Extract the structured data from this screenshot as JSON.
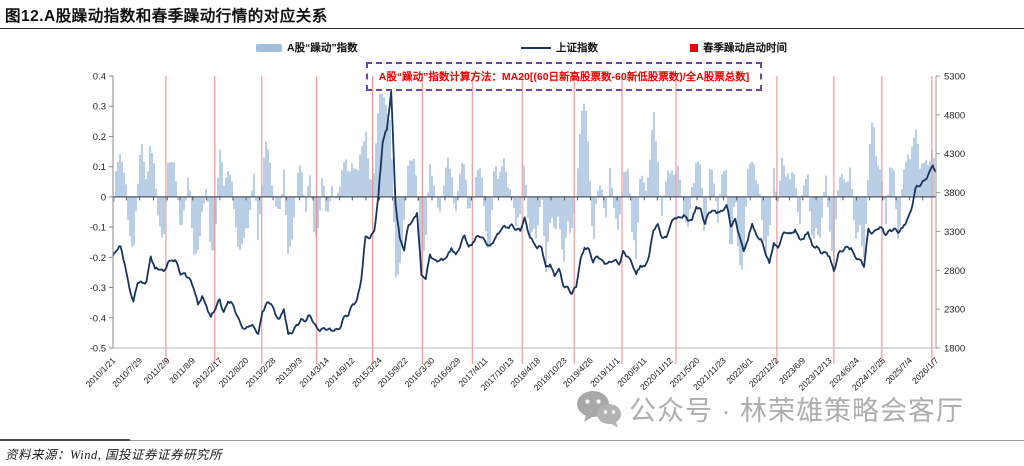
{
  "header": {
    "title": "图12.A股躁动指数和春季躁动行情的对应关系"
  },
  "legend": [
    {
      "label": "A股“躁动”指数",
      "type": "bar",
      "color": "#a3bedd"
    },
    {
      "label": "上证指数",
      "type": "line",
      "color": "#17355e"
    },
    {
      "label": "春季躁动启动时间",
      "type": "square",
      "color": "#e40000"
    }
  ],
  "annotation": {
    "text": "A股“躁动”指数计算方法：MA20[(60日新高股票数-60新低股票数)/全A股票总数]",
    "text_color": "#ee0000",
    "border_color": "#6a48a8"
  },
  "watermark": {
    "text": "公众号 · 林荣雄策略会客厅"
  },
  "footer": {
    "source": "资料来源：Wind, 国投证券证券研究所"
  },
  "chart_data": {
    "type": "bar+line",
    "title": "图12.A股躁动指数和春季躁动行情的对应关系",
    "x_range": [
      "2010/1/21",
      "2026/1/7"
    ],
    "left_axis": {
      "range": [
        -0.5,
        0.4
      ],
      "ticks": [
        "0.4",
        "0.3",
        "0.2",
        "0.1",
        "0",
        "-0.1",
        "-0.2",
        "-0.3",
        "-0.4",
        "-0.5"
      ]
    },
    "right_axis": {
      "range": [
        1800,
        5300
      ],
      "ticks": [
        "5300",
        "4800",
        "4300",
        "3800",
        "3300",
        "2800",
        "2300",
        "1800"
      ]
    },
    "x_tick_labels": [
      "2010/1/21",
      "2010/7/29",
      "2011/2/9",
      "2011/8/9",
      "2012/2/17",
      "2012/8/20",
      "2013/2/28",
      "2013/9/3",
      "2014/3/14",
      "2014/9/12",
      "2015/3/24",
      "2015/9/22",
      "2016/3/30",
      "2016/9/29",
      "2017/4/11",
      "2017/10/13",
      "2018/4/18",
      "2018/10/23",
      "2019/4/26",
      "2019/11/1",
      "2020/5/11",
      "2020/11/12",
      "2021/5/20",
      "2021/11/23",
      "2022/6/1",
      "2022/12/2",
      "2023/6/9",
      "2023/12/13",
      "2024/6/24",
      "2024/12/25",
      "2025/7/4",
      "2026/1/7"
    ],
    "series": [
      {
        "name": "A股“躁动”指数",
        "type": "bar",
        "axis": "left",
        "color": "#a3bedd",
        "start_month": "2010/1",
        "monthly_values": [
          -0.05,
          0.06,
          0.14,
          0.1,
          -0.13,
          -0.15,
          0.03,
          0.16,
          0.05,
          0.16,
          0.1,
          -0.08,
          -0.17,
          0.12,
          0.1,
          0.04,
          -0.08,
          -0.04,
          0.1,
          -0.2,
          -0.22,
          -0.04,
          0.04,
          -0.18,
          -0.12,
          0.15,
          0.04,
          0.08,
          0.02,
          -0.1,
          -0.18,
          -0.12,
          -0.06,
          0.05,
          -0.14,
          0.09,
          0.2,
          0.1,
          -0.05,
          -0.08,
          0.1,
          -0.22,
          -0.1,
          0.06,
          0.1,
          -0.05,
          0.06,
          -0.12,
          -0.08,
          0.08,
          -0.06,
          0.02,
          -0.05,
          0.05,
          0.12,
          0.1,
          0.14,
          0.04,
          0.16,
          0.21,
          0.04,
          0.12,
          0.3,
          0.35,
          0.3,
          0.18,
          -0.25,
          -0.22,
          -0.08,
          0.15,
          0.1,
          0.04,
          -0.27,
          -0.14,
          0.15,
          0.04,
          -0.08,
          0.02,
          0.1,
          0.08,
          -0.03,
          0.08,
          0.14,
          -0.08,
          -0.04,
          0.12,
          0.08,
          -0.1,
          -0.15,
          0.08,
          0.06,
          0.12,
          0.04,
          0.05,
          -0.1,
          -0.06,
          0.12,
          -0.18,
          -0.08,
          -0.12,
          0.02,
          -0.22,
          -0.1,
          -0.12,
          -0.05,
          -0.25,
          -0.04,
          -0.12,
          -0.02,
          0.25,
          0.3,
          0.16,
          -0.15,
          0.02,
          0.05,
          -0.1,
          0.08,
          -0.04,
          -0.12,
          0.1,
          0.12,
          -0.14,
          -0.2,
          0.08,
          0.02,
          0.12,
          0.28,
          0.12,
          -0.08,
          0.04,
          0.12,
          0.08,
          0.1,
          -0.04,
          -0.15,
          0.02,
          0.12,
          0.1,
          -0.12,
          0.08,
          0.05,
          -0.08,
          0.06,
          0.1,
          -0.2,
          0.02,
          -0.22,
          -0.25,
          0.08,
          0.15,
          0.05,
          0.02,
          -0.2,
          -0.15,
          0.1,
          -0.04,
          0.15,
          0.1,
          0.05,
          0.08,
          -0.12,
          0.02,
          0.1,
          -0.15,
          -0.1,
          -0.12,
          0.05,
          -0.1,
          -0.22,
          0.05,
          0.12,
          0.02,
          0.08,
          -0.15,
          -0.12,
          -0.18,
          0.1,
          0.27,
          0.12,
          0.05,
          -0.1,
          0.12,
          0.08,
          -0.14,
          0.05,
          0.1,
          0.15,
          0.22,
          0.12,
          0.15,
          0.08,
          0.16,
          0.12
        ]
      },
      {
        "name": "上证指数",
        "type": "line",
        "axis": "right",
        "color": "#17355e",
        "start_month": "2010/1",
        "monthly_values": [
          2989,
          3052,
          3109,
          2871,
          2592,
          2398,
          2638,
          2639,
          2656,
          2979,
          2820,
          2808,
          2790,
          2905,
          2928,
          2911,
          2743,
          2762,
          2701,
          2567,
          2359,
          2468,
          2333,
          2199,
          2293,
          2428,
          2262,
          2396,
          2372,
          2225,
          2104,
          2047,
          2086,
          2068,
          1980,
          2269,
          2385,
          2365,
          2236,
          2177,
          2301,
          1979,
          1994,
          2098,
          2175,
          2141,
          2221,
          2116,
          2033,
          2056,
          2033,
          2026,
          2039,
          2048,
          2202,
          2217,
          2364,
          2420,
          2683,
          3235,
          3210,
          3310,
          3748,
          4442,
          4612,
          5100,
          3664,
          3206,
          3053,
          3383,
          3445,
          3539,
          2738,
          2688,
          3004,
          2938,
          2917,
          2930,
          2979,
          3085,
          3005,
          3100,
          3250,
          3104,
          3159,
          3242,
          3223,
          3155,
          3117,
          3192,
          3273,
          3361,
          3349,
          3393,
          3317,
          3307,
          3481,
          3259,
          3169,
          3082,
          3095,
          2847,
          2876,
          2725,
          2821,
          2603,
          2588,
          2494,
          2585,
          2941,
          3091,
          3078,
          2899,
          2979,
          2933,
          2886,
          2905,
          2929,
          2872,
          3050,
          2977,
          2880,
          2750,
          2860,
          2852,
          2985,
          3310,
          3396,
          3218,
          3225,
          3392,
          3473,
          3483,
          3509,
          3442,
          3447,
          3615,
          3591,
          3397,
          3544,
          3568,
          3547,
          3564,
          3640,
          3361,
          3462,
          3252,
          3047,
          3186,
          3399,
          3253,
          3202,
          3024,
          2893,
          3151,
          3089,
          3256,
          3280,
          3273,
          3323,
          3205,
          3202,
          3291,
          3120,
          3110,
          3019,
          3030,
          2975,
          2789,
          3015,
          3041,
          3105,
          3087,
          2967,
          2938,
          2842,
          3336,
          3280,
          3326,
          3352,
          3251,
          3321,
          3336,
          3279,
          3347,
          3444,
          3573,
          3858,
          3883,
          3955,
          4040,
          4150,
          4060
        ]
      }
    ],
    "event_lines": {
      "name": "春季躁动启动时间",
      "color": "#ef8f8f",
      "dates": [
        "2011/1/31",
        "2012/1/12",
        "2012/12/10",
        "2014/1/3",
        "2015/2/3",
        "2016/1/21",
        "2017/1/9",
        "2017/12/29",
        "2019/1/1",
        "2019/12/6",
        "2020/12/22",
        "2022/12/7",
        "2024/1/15",
        "2024/12/20",
        "2025/12/9"
      ]
    },
    "legend_position": "top",
    "grid": false
  }
}
